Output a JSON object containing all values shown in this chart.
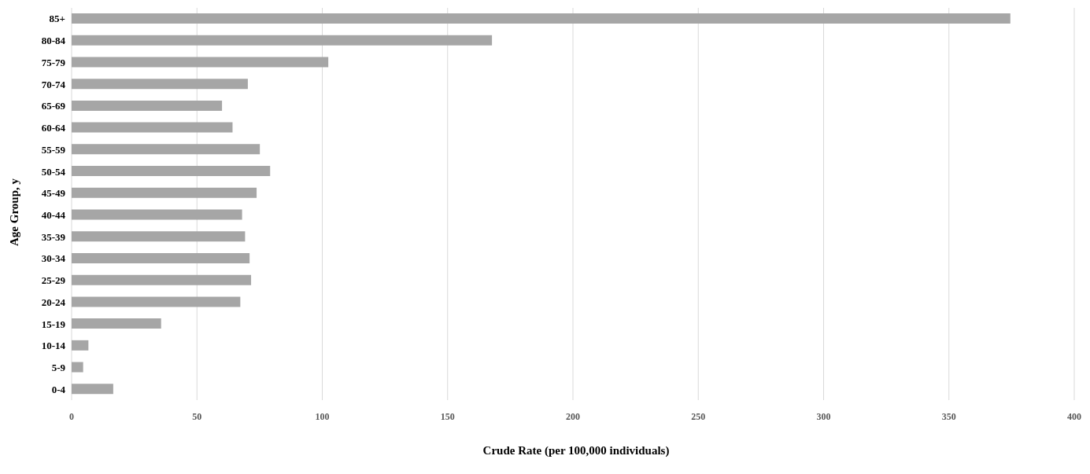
{
  "chart_data": {
    "type": "bar",
    "orientation": "horizontal",
    "xlabel": "Crude Rate (per 100,000 individuals)",
    "ylabel": "Age Group, y",
    "categories": [
      "85+",
      "80-84",
      "75-79",
      "70-74",
      "65-69",
      "60-64",
      "55-59",
      "50-54",
      "45-49",
      "40-44",
      "35-39",
      "30-34",
      "25-29",
      "20-24",
      "15-19",
      "10-14",
      "5-9",
      "0-4"
    ],
    "values": [
      374.5,
      167.7,
      102.4,
      70.3,
      60.0,
      64.2,
      75.1,
      79.2,
      73.8,
      68.0,
      69.2,
      71.0,
      71.6,
      67.3,
      35.7,
      6.7,
      4.6,
      16.6
    ],
    "color": "#a6a6a6",
    "xlim": [
      0,
      400
    ],
    "xticks": [
      0,
      50,
      100,
      150,
      200,
      250,
      300,
      350,
      400
    ],
    "grid": "x"
  }
}
